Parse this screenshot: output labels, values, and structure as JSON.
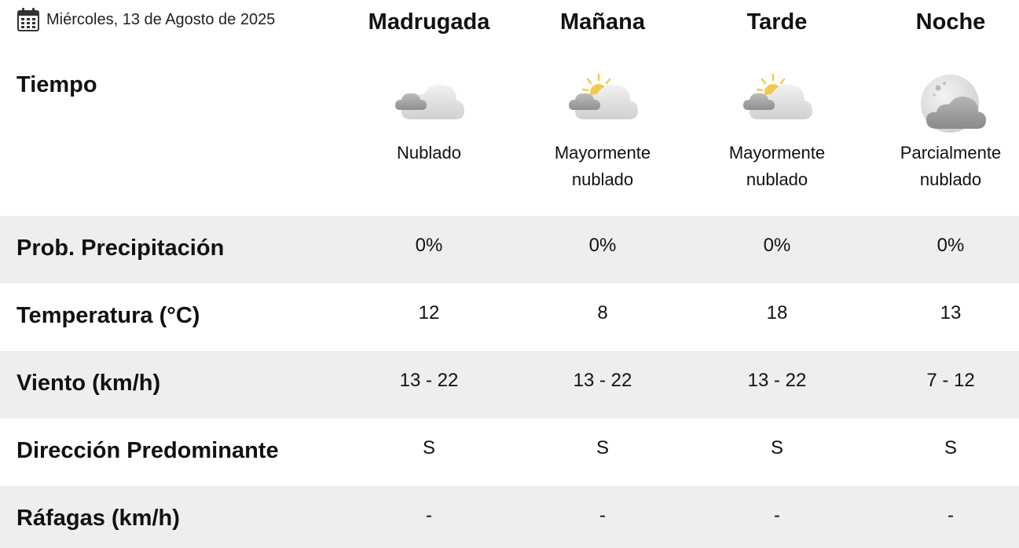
{
  "date": "Miércoles, 13 de Agosto de 2025",
  "periods": [
    "Madrugada",
    "Mañana",
    "Tarde",
    "Noche"
  ],
  "weather": {
    "label": "Tiempo",
    "cells": [
      {
        "icon": "cloudy-icon",
        "desc": "Nublado"
      },
      {
        "icon": "mostly-cloudy-day-icon",
        "desc": "Mayormente\nnublado"
      },
      {
        "icon": "mostly-cloudy-day-icon",
        "desc": "Mayormente\nnublado"
      },
      {
        "icon": "partly-cloudy-night-icon",
        "desc": "Parcialmente\nnublado"
      }
    ]
  },
  "rows": [
    {
      "label": "Prob. Precipitación",
      "values": [
        "0%",
        "0%",
        "0%",
        "0%"
      ]
    },
    {
      "label": "Temperatura (°C)",
      "values": [
        "12",
        "8",
        "18",
        "13"
      ]
    },
    {
      "label": "Viento (km/h)",
      "values": [
        "13 - 22",
        "13 - 22",
        "13 - 22",
        "7 - 12"
      ]
    },
    {
      "label": "Dirección Predominante",
      "values": [
        "S",
        "S",
        "S",
        "S"
      ]
    },
    {
      "label": "Ráfagas (km/h)",
      "values": [
        "-",
        "-",
        "-",
        "-"
      ]
    }
  ],
  "colors": {
    "row_shade": "#eeeeee",
    "cloud_light": "#e6e6e6",
    "cloud_dark": "#a9a9a9",
    "sun": "#f2c94c",
    "moon": "#e2e2e2"
  }
}
